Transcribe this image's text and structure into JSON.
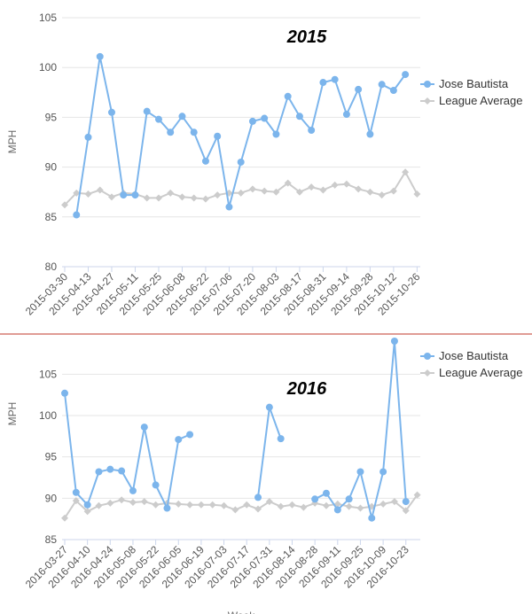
{
  "chart_data": [
    {
      "type": "line",
      "title": "2015",
      "ylabel": "MPH",
      "ylim": [
        80,
        105
      ],
      "yticks": [
        80,
        85,
        90,
        95,
        100,
        105
      ],
      "grid": true,
      "legend_position": "right",
      "x_labels": [
        "2015-03-30",
        "2015-04-13",
        "2015-04-27",
        "2015-05-11",
        "2015-05-25",
        "2015-06-08",
        "2015-06-22",
        "2015-07-06",
        "2015-07-20",
        "2015-08-03",
        "2015-08-17",
        "2015-08-31",
        "2015-09-14",
        "2015-09-28",
        "2015-10-12",
        "2015-10-26"
      ],
      "series": [
        {
          "name": "Jose Bautista",
          "color": "#7cb5ec",
          "values": [
            null,
            85.2,
            93.0,
            101.1,
            95.5,
            87.2,
            87.2,
            95.6,
            94.8,
            93.5,
            95.1,
            93.5,
            90.6,
            93.1,
            86.0,
            90.5,
            94.6,
            94.9,
            93.3,
            97.1,
            95.1,
            93.7,
            98.5,
            98.8,
            95.3,
            97.8,
            93.3,
            98.3,
            97.7,
            99.3,
            null
          ]
        },
        {
          "name": "League Average",
          "color": "#cccccc",
          "values": [
            86.2,
            87.4,
            87.3,
            87.7,
            87.0,
            87.4,
            87.3,
            86.9,
            86.9,
            87.4,
            87.0,
            86.9,
            86.8,
            87.2,
            87.4,
            87.4,
            87.8,
            87.6,
            87.5,
            88.4,
            87.5,
            88.0,
            87.7,
            88.2,
            88.3,
            87.8,
            87.5,
            87.2,
            87.6,
            89.5,
            87.3
          ]
        }
      ]
    },
    {
      "type": "line",
      "title": "2016",
      "ylabel": "MPH",
      "ylim": [
        85,
        109
      ],
      "yticks": [
        85,
        90,
        95,
        100,
        105
      ],
      "grid": true,
      "legend_position": "top-right",
      "x_labels": [
        "2016-03-27",
        "2016-04-10",
        "2016-04-24",
        "2016-05-08",
        "2016-05-22",
        "2016-06-05",
        "2016-06-19",
        "2016-07-03",
        "2016-07-17",
        "2016-07-31",
        "2016-08-14",
        "2016-08-28",
        "2016-09-11",
        "2016-09-25",
        "2016-10-09",
        "2016-10-23"
      ],
      "x_label_partial": "Week",
      "series": [
        {
          "name": "Jose Bautista",
          "color": "#7cb5ec",
          "values": [
            102.7,
            90.7,
            89.2,
            93.2,
            93.5,
            93.3,
            90.9,
            98.6,
            91.6,
            88.8,
            97.1,
            97.7,
            null,
            null,
            null,
            null,
            null,
            90.1,
            101.0,
            97.2,
            null,
            null,
            89.9,
            90.6,
            88.6,
            89.9,
            93.2,
            87.6,
            93.2,
            109.0,
            89.6,
            null
          ]
        },
        {
          "name": "League Average",
          "color": "#cccccc",
          "values": [
            87.6,
            89.7,
            88.4,
            89.1,
            89.4,
            89.8,
            89.5,
            89.6,
            89.2,
            89.4,
            89.3,
            89.2,
            89.2,
            89.2,
            89.1,
            88.6,
            89.2,
            88.7,
            89.6,
            89.0,
            89.2,
            88.9,
            89.4,
            89.1,
            89.3,
            89.0,
            88.8,
            89.0,
            89.3,
            89.6,
            88.5,
            90.4
          ]
        }
      ]
    }
  ]
}
